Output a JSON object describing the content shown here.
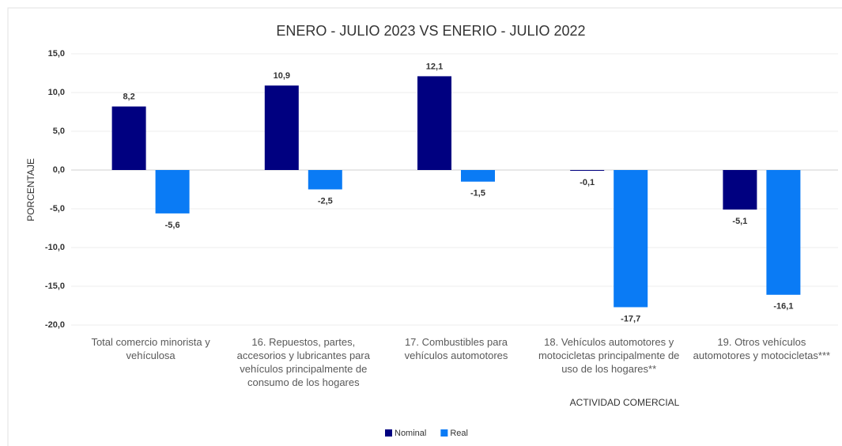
{
  "chart_data": {
    "type": "bar",
    "title": "ENERO - JULIO 2023 VS ENERIO - JULIO 2022",
    "ylabel": "PORCENTAJE",
    "xlabel": "ACTIVIDAD COMERCIAL",
    "categories": [
      "Total comercio minorista y vehículosa",
      "16. Repuestos, partes, accesorios y lubricantes para vehículos principalmente de consumo de los hogares",
      "17. Combustibles para vehículos automotores",
      "18. Vehículos automotores y motocicletas principalmente de uso de los hogares**",
      "19. Otros vehículos automotores y motocicletas***"
    ],
    "series": [
      {
        "name": "Nominal",
        "color": "#000080",
        "values": [
          8.2,
          10.9,
          12.1,
          -0.1,
          -5.1
        ],
        "value_labels": [
          "8,2",
          "10,9",
          "12,1",
          "-0,1",
          "-5,1"
        ]
      },
      {
        "name": "Real",
        "color": "#0a7bf5",
        "values": [
          -5.6,
          -2.5,
          -1.5,
          -17.7,
          -16.1
        ],
        "value_labels": [
          "-5,6",
          "-2,5",
          "-1,5",
          "-17,7",
          "-16,1"
        ]
      }
    ],
    "ylim": [
      -20,
      15
    ],
    "yticks": [
      {
        "value": -20,
        "label": "-20,0"
      },
      {
        "value": -15,
        "label": "-15,0"
      },
      {
        "value": -10,
        "label": "-10,0"
      },
      {
        "value": -5,
        "label": "-5,0"
      },
      {
        "value": 0,
        "label": "0,0"
      },
      {
        "value": 5,
        "label": "5,0"
      },
      {
        "value": 10,
        "label": "10,0"
      },
      {
        "value": 15,
        "label": "15,0"
      }
    ],
    "grid": true,
    "legend": "bottom"
  }
}
